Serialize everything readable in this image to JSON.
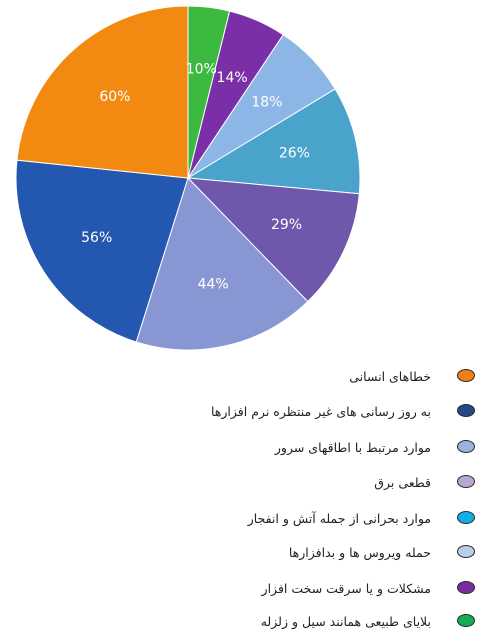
{
  "chart_data": {
    "type": "pie",
    "slices": [
      {
        "label": "10%",
        "value": 10,
        "color": "#3cb93f"
      },
      {
        "label": "14%",
        "value": 14,
        "color": "#7b2fa6"
      },
      {
        "label": "18%",
        "value": 18,
        "color": "#8bb6e6"
      },
      {
        "label": "26%",
        "value": 26,
        "color": "#4aa3cb"
      },
      {
        "label": "29%",
        "value": 29,
        "color": "#6f57ab"
      },
      {
        "label": "44%",
        "value": 44,
        "color": "#8896d4"
      },
      {
        "label": "56%",
        "value": 56,
        "color": "#2357b0"
      },
      {
        "label": "60%",
        "value": 60,
        "color": "#f28a12"
      }
    ]
  },
  "legend": [
    {
      "label": "خطاهای انسانی",
      "color": "#f07f16"
    },
    {
      "label": "به روز رسانی های غیر منتظره نرم افزارها",
      "color": "#224a86"
    },
    {
      "label": "موارد مرتبط با اطاقهای سرور",
      "color": "#98b4db"
    },
    {
      "label": "قطعی برق",
      "color": "#b9a7d3"
    },
    {
      "label": "موارد بحرانی  از جمله آتش و انفجار",
      "color": "#10aee9"
    },
    {
      "label": "حمله ویروس ها و بدافزارها",
      "color": "#b9cde6"
    },
    {
      "label": "مشکلات  و یا سرقت سخت افزار",
      "color": "#7a2e9c"
    },
    {
      "label": "بلایای طبیعی همانند سیل و زلزله",
      "color": "#13ad56"
    }
  ]
}
